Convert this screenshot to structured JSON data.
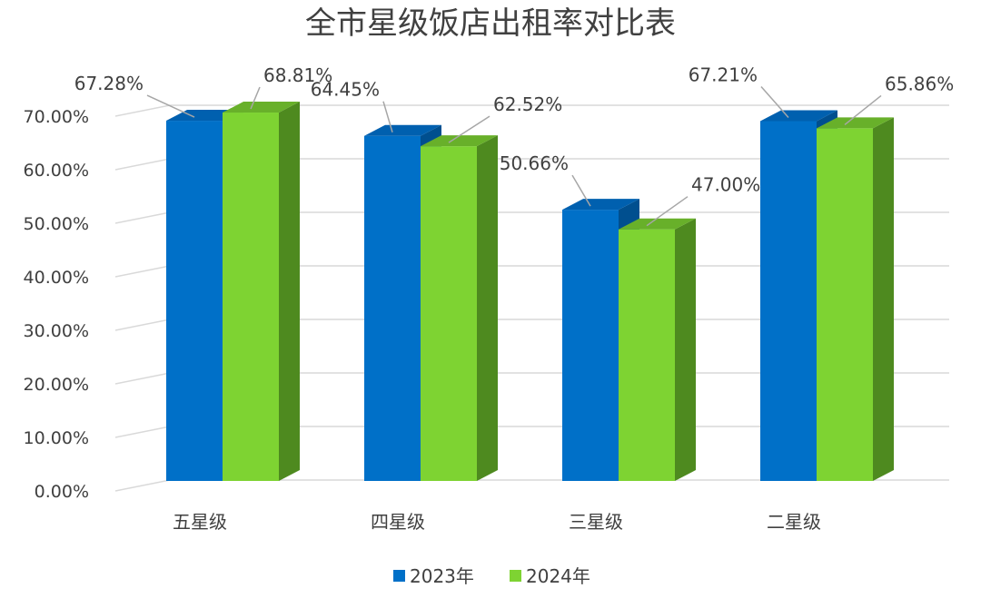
{
  "chart_data": {
    "type": "bar",
    "title": "全市星级饭店出租率对比表",
    "categories": [
      "五星级",
      "四星级",
      "三星级",
      "二星级"
    ],
    "series": [
      {
        "name": "2023年",
        "values": [
          67.28,
          64.45,
          50.66,
          67.21
        ],
        "labels": [
          "67.28%",
          "64.45%",
          "50.66%",
          "67.21%"
        ]
      },
      {
        "name": "2024年",
        "values": [
          68.81,
          62.52,
          47.0,
          65.86
        ],
        "labels": [
          "68.81%",
          "62.52%",
          "47.00%",
          "65.86%"
        ]
      }
    ],
    "yticks": [
      "0.00%",
      "10.00%",
      "20.00%",
      "30.00%",
      "40.00%",
      "50.00%",
      "60.00%",
      "70.00%"
    ],
    "ylim": [
      0,
      70
    ],
    "y_unit": "%",
    "grid": true,
    "legend_position": "bottom",
    "style": "3d-column",
    "colors": {
      "2023": {
        "front": "#0070C8",
        "side": "#004F8F",
        "top": "#0060AF"
      },
      "2024": {
        "front": "#7ED332",
        "side": "#4E8A1F",
        "top": "#68B02A"
      },
      "grid": "#D9D9D9",
      "leader": "#A6A6A6"
    }
  }
}
